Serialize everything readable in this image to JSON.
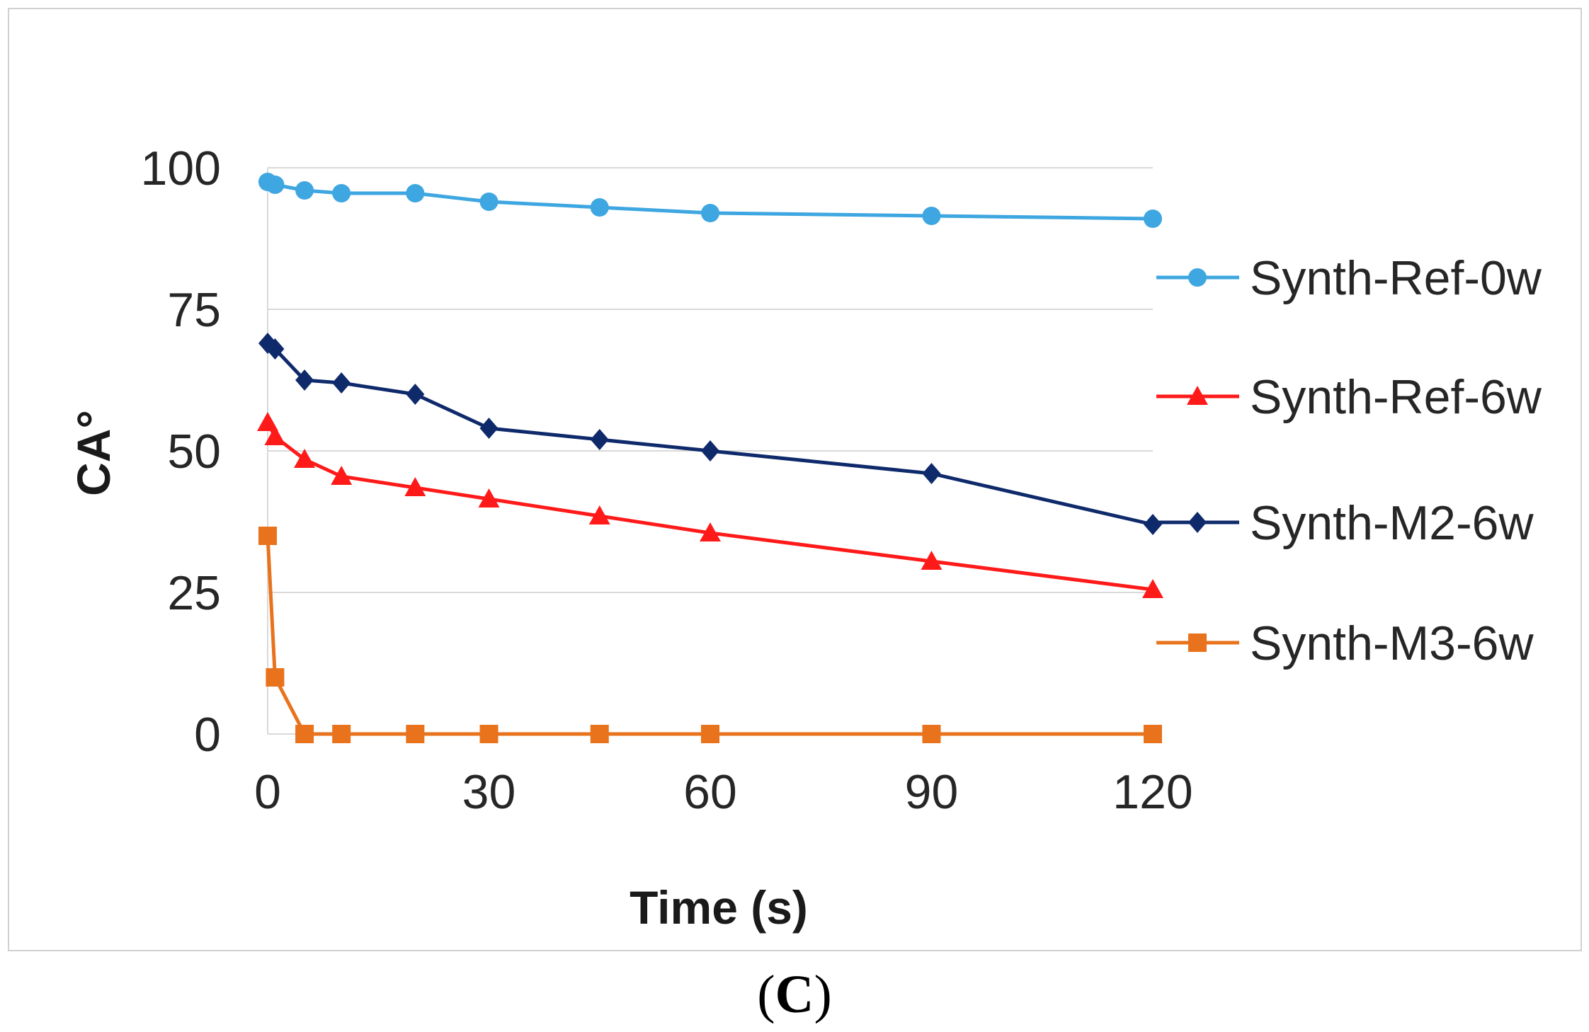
{
  "chart_data": {
    "type": "line",
    "title": "",
    "xlabel": "Time (s)",
    "ylabel": "CA°",
    "xlim": [
      0,
      120
    ],
    "ylim": [
      0,
      100
    ],
    "x_ticks": [
      "0",
      "30",
      "60",
      "90",
      "120"
    ],
    "y_ticks": [
      "0",
      "25",
      "50",
      "75",
      "100"
    ],
    "grid": "horizontal",
    "legend_position": "right",
    "series": [
      {
        "name": "Synth-Ref-0w",
        "marker": "circle",
        "color": "#3ea6e0",
        "x": [
          0,
          1,
          5,
          10,
          20,
          30,
          45,
          60,
          90,
          120
        ],
        "y": [
          97.5,
          97,
          96,
          95.5,
          95.5,
          94,
          93,
          92,
          91.5,
          91
        ]
      },
      {
        "name": "Synth-Ref-6w",
        "marker": "triangle",
        "color": "#ff1a1a",
        "x": [
          0,
          1,
          5,
          10,
          20,
          30,
          45,
          60,
          90,
          120
        ],
        "y": [
          55,
          52.5,
          48.5,
          45.5,
          43.5,
          41.5,
          38.5,
          35.5,
          30.5,
          25.5
        ]
      },
      {
        "name": "Synth-M2-6w",
        "marker": "diamond",
        "color": "#0f2a6b",
        "x": [
          0,
          1,
          5,
          10,
          20,
          30,
          45,
          60,
          90,
          120
        ],
        "y": [
          69,
          68,
          62.5,
          62,
          60,
          54,
          52,
          50,
          46,
          37
        ]
      },
      {
        "name": "Synth-M3-6w",
        "marker": "square",
        "color": "#e8731c",
        "x": [
          0,
          1,
          5,
          10,
          20,
          30,
          45,
          60,
          90,
          120
        ],
        "y": [
          35,
          10,
          0,
          0,
          0,
          0,
          0,
          0,
          0,
          0
        ]
      }
    ]
  },
  "panel_label": {
    "open": "(",
    "letter": "C",
    "close": ")"
  }
}
